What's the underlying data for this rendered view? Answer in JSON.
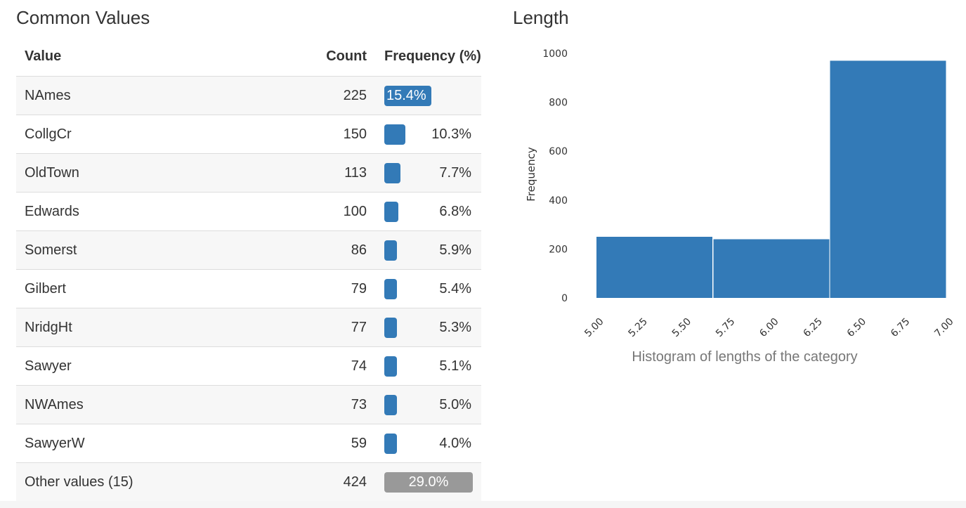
{
  "common_values": {
    "title": "Common Values",
    "headers": {
      "value": "Value",
      "count": "Count",
      "frequency": "Frequency (%)"
    },
    "bar_color": "#337ab7",
    "other_color": "#999999",
    "rows": [
      {
        "value": "NAmes",
        "count": "225",
        "pct": "15.4%",
        "fraction": 0.154
      },
      {
        "value": "CollgCr",
        "count": "150",
        "pct": "10.3%",
        "fraction": 0.103
      },
      {
        "value": "OldTown",
        "count": "113",
        "pct": "7.7%",
        "fraction": 0.077
      },
      {
        "value": "Edwards",
        "count": "100",
        "pct": "6.8%",
        "fraction": 0.068
      },
      {
        "value": "Somerst",
        "count": "86",
        "pct": "5.9%",
        "fraction": 0.059
      },
      {
        "value": "Gilbert",
        "count": "79",
        "pct": "5.4%",
        "fraction": 0.054
      },
      {
        "value": "NridgHt",
        "count": "77",
        "pct": "5.3%",
        "fraction": 0.053
      },
      {
        "value": "Sawyer",
        "count": "74",
        "pct": "5.1%",
        "fraction": 0.051
      },
      {
        "value": "NWAmes",
        "count": "73",
        "pct": "5.0%",
        "fraction": 0.05
      },
      {
        "value": "SawyerW",
        "count": "59",
        "pct": "4.0%",
        "fraction": 0.04
      },
      {
        "value": "Other values (15)",
        "count": "424",
        "pct": "29.0%",
        "fraction": 0.29,
        "other": true
      }
    ]
  },
  "length": {
    "title": "Length"
  },
  "chart_data": {
    "type": "bar",
    "title": "",
    "caption": "Histogram of lengths of the category",
    "xlabel": "",
    "ylabel": "Frequency",
    "color": "#337ab7",
    "bins": [
      {
        "x0": 5.0,
        "x1": 5.6667,
        "value": 250
      },
      {
        "x0": 5.6667,
        "x1": 6.3333,
        "value": 240
      },
      {
        "x0": 6.3333,
        "x1": 7.0,
        "value": 970
      }
    ],
    "xlim": [
      5.0,
      7.0
    ],
    "ylim": [
      0,
      1000
    ],
    "xticks": [
      "5.00",
      "5.25",
      "5.50",
      "5.75",
      "6.00",
      "6.25",
      "6.50",
      "6.75",
      "7.00"
    ],
    "yticks": [
      "0",
      "200",
      "400",
      "600",
      "800",
      "1000"
    ],
    "grid": false
  }
}
